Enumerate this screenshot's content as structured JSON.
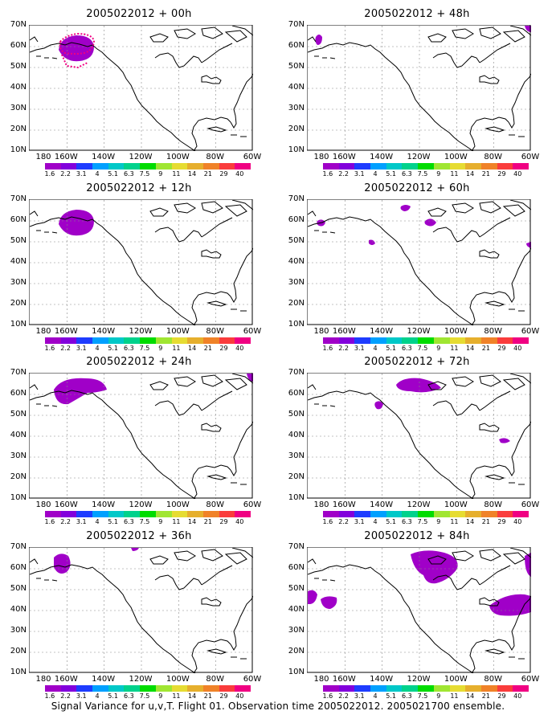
{
  "panels": [
    {
      "title": "2005022012 + 00h",
      "blobs": [
        "alaska_full"
      ],
      "dots": true
    },
    {
      "title": "2005022012 + 48h",
      "blobs": [
        "siberia_small",
        "ne_corner"
      ],
      "dots": false
    },
    {
      "title": "2005022012 + 12h",
      "blobs": [
        "alaska_full"
      ],
      "dots": false
    },
    {
      "title": "2005022012 + 60h",
      "blobs": [
        "p60_a",
        "p60_b",
        "p60_c",
        "p60_d",
        "p60_e"
      ],
      "dots": false
    },
    {
      "title": "2005022012 + 24h",
      "blobs": [
        "alaska_wide",
        "ne_corner2"
      ],
      "dots": false
    },
    {
      "title": "2005022012 + 72h",
      "blobs": [
        "p72_a",
        "p72_b",
        "p72_c"
      ],
      "dots": false
    },
    {
      "title": "2005022012 + 36h",
      "blobs": [
        "p36_a",
        "p36_b"
      ],
      "dots": false
    },
    {
      "title": "2005022012 + 84h",
      "blobs": [
        "p84_a",
        "p84_b",
        "p84_c",
        "p84_d",
        "p84_e"
      ],
      "dots": false
    }
  ],
  "y_labels": [
    "70N",
    "60N",
    "50N",
    "40N",
    "30N",
    "20N",
    "10N"
  ],
  "x_labels": [
    "180",
    "160W",
    "140W",
    "120W",
    "100W",
    "80W",
    "60W"
  ],
  "colorbar": {
    "labels": [
      "1.6",
      "2.2",
      "3.1",
      "4",
      "5.1",
      "6.3",
      "7.5",
      "9",
      "11",
      "14",
      "21",
      "29",
      "40"
    ],
    "colors": [
      "#a000c8",
      "#8200dc",
      "#1e3cff",
      "#00a0ff",
      "#00c8c8",
      "#00d28c",
      "#00dc00",
      "#a0e632",
      "#e6dc32",
      "#e6af2d",
      "#f08228",
      "#fa3c3c",
      "#f00082"
    ]
  },
  "caption": "Signal Variance for u,v,T. Flight 01. Observation time 2005022012. 2005021700 ensemble."
}
